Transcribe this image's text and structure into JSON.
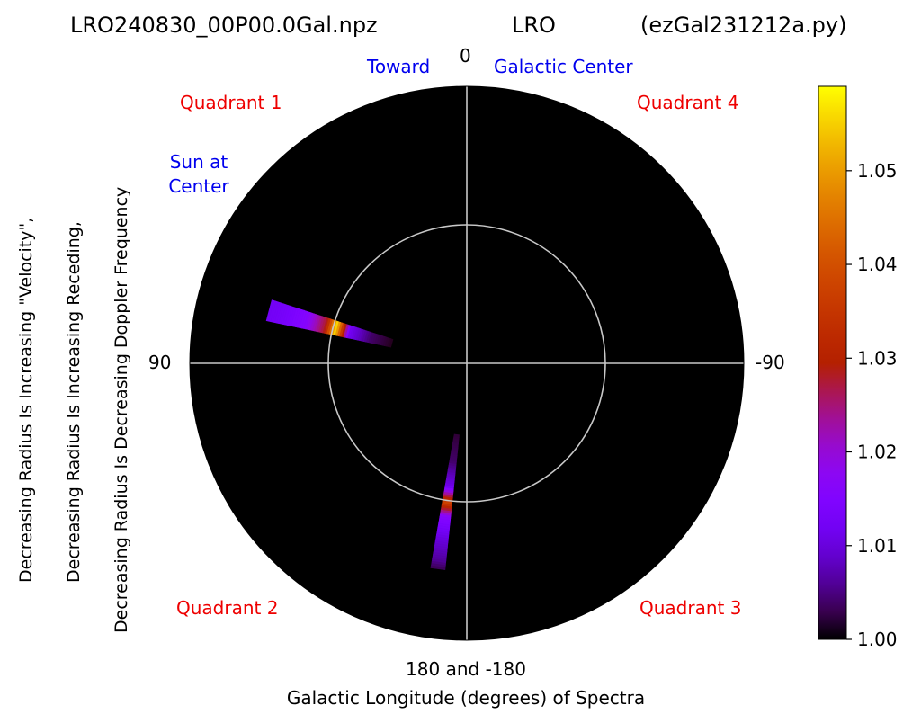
{
  "header": {
    "file": "LRO240830_00P00.0Gal.npz",
    "site": "LRO",
    "program": "(ezGal231212a.py)"
  },
  "annotations": {
    "toward": "Toward",
    "galactic_center": "Galactic Center",
    "sun_line1": "Sun at",
    "sun_line2": "Center",
    "quadrant1": "Quadrant 1",
    "quadrant2": "Quadrant 2",
    "quadrant3": "Quadrant 3",
    "quadrant4": "Quadrant 4"
  },
  "ylabels": [
    "Decreasing Radius Is Increasing \"Velocity\",",
    "Decreasing Radius Is Increasing Receding,",
    "Decreasing Radius Is Decreasing Doppler Frequency"
  ],
  "colors": {
    "plot_background": "#000000",
    "grid": "#c8c8c8",
    "annotation_blue": "#0000ee",
    "annotation_red": "#ee0000",
    "colormap": "gnuplot"
  },
  "chart_data": {
    "type": "polar-heatmap",
    "xlabel": "Galactic Longitude (degrees) of Spectra",
    "angle_labels": [
      {
        "name": "top",
        "text": "0"
      },
      {
        "name": "left",
        "text": "90"
      },
      {
        "name": "right",
        "text": "-90"
      },
      {
        "name": "bottom",
        "text": "180 and -180"
      }
    ],
    "angle_direction": "0 at top, 90 at left, -90 at right, 180 at bottom",
    "grid": true,
    "inner_circle_radius_fraction": 0.5,
    "colorbar": {
      "min": 1.0,
      "max": 1.059,
      "ticks": [
        1.0,
        1.01,
        1.02,
        1.03,
        1.04,
        1.05
      ],
      "tick_labels": [
        "1.00",
        "1.01",
        "1.02",
        "1.03",
        "1.04",
        "1.05"
      ]
    },
    "series": [
      {
        "galactic_longitude_deg": 75,
        "spoke_width_deg": 6,
        "radius_range_fraction": [
          0.28,
          0.74
        ],
        "profile": [
          {
            "r": 0.28,
            "value": 1.001
          },
          {
            "r": 0.36,
            "value": 1.004
          },
          {
            "r": 0.44,
            "value": 1.012
          },
          {
            "r": 0.49,
            "value": 1.056
          },
          {
            "r": 0.53,
            "value": 1.028
          },
          {
            "r": 0.6,
            "value": 1.016
          },
          {
            "r": 0.68,
            "value": 1.013
          },
          {
            "r": 0.74,
            "value": 1.012
          }
        ]
      },
      {
        "galactic_longitude_deg": 172,
        "spoke_width_deg": 4,
        "radius_range_fraction": [
          0.26,
          0.75
        ],
        "profile": [
          {
            "r": 0.26,
            "value": 1.002
          },
          {
            "r": 0.36,
            "value": 1.004
          },
          {
            "r": 0.45,
            "value": 1.011
          },
          {
            "r": 0.51,
            "value": 1.038
          },
          {
            "r": 0.56,
            "value": 1.016
          },
          {
            "r": 0.64,
            "value": 1.01
          },
          {
            "r": 0.72,
            "value": 1.006
          },
          {
            "r": 0.75,
            "value": 1.003
          }
        ]
      }
    ]
  }
}
